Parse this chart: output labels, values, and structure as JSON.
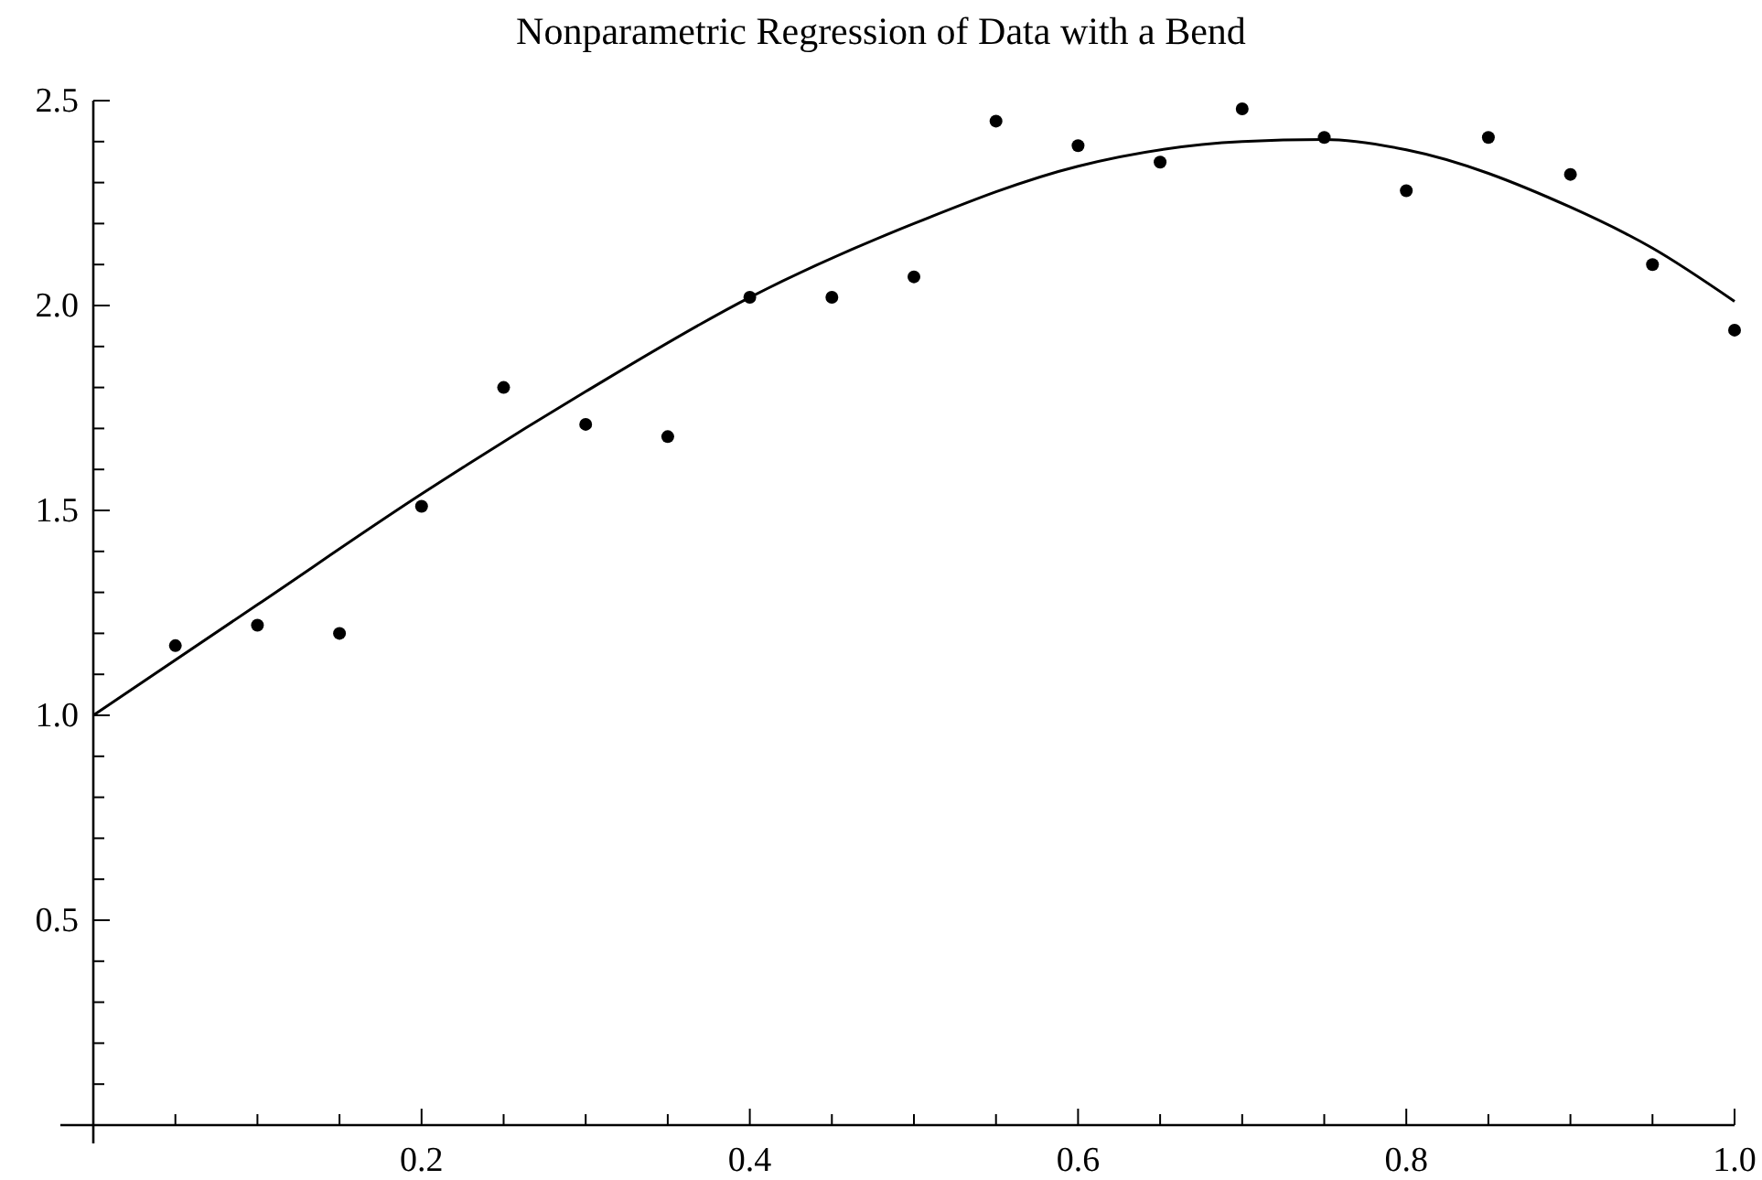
{
  "chart_data": {
    "type": "scatter",
    "title": "Nonparametric Regression of Data with a Bend",
    "xlim": [
      0,
      1.0
    ],
    "ylim": [
      0,
      2.5
    ],
    "xticks": [
      {
        "value": 0.05,
        "label": null
      },
      {
        "value": 0.1,
        "label": null
      },
      {
        "value": 0.15,
        "label": null
      },
      0.2,
      {
        "value": 0.25,
        "label": null
      },
      {
        "value": 0.3,
        "label": null
      },
      {
        "value": 0.35,
        "label": null
      },
      0.4,
      {
        "value": 0.45,
        "label": null
      },
      {
        "value": 0.5,
        "label": null
      },
      {
        "value": 0.55,
        "label": null
      },
      0.6,
      {
        "value": 0.65,
        "label": null
      },
      {
        "value": 0.7,
        "label": null
      },
      {
        "value": 0.75,
        "label": null
      },
      0.8,
      {
        "value": 0.85,
        "label": null
      },
      {
        "value": 0.9,
        "label": null
      },
      {
        "value": 0.95,
        "label": null
      },
      {
        "value": 1.0,
        "label": "1.0"
      }
    ],
    "yticks": [
      {
        "value": 0.1,
        "label": null
      },
      {
        "value": 0.2,
        "label": null
      },
      {
        "value": 0.3,
        "label": null
      },
      {
        "value": 0.4,
        "label": null
      },
      0.5,
      {
        "value": 0.6,
        "label": null
      },
      {
        "value": 0.7,
        "label": null
      },
      {
        "value": 0.8,
        "label": null
      },
      {
        "value": 0.9,
        "label": null
      },
      {
        "value": 1.0,
        "label": "1.0"
      },
      {
        "value": 1.1,
        "label": null
      },
      {
        "value": 1.2,
        "label": null
      },
      {
        "value": 1.3,
        "label": null
      },
      {
        "value": 1.4,
        "label": null
      },
      1.5,
      {
        "value": 1.6,
        "label": null
      },
      {
        "value": 1.7,
        "label": null
      },
      {
        "value": 1.8,
        "label": null
      },
      {
        "value": 1.9,
        "label": null
      },
      {
        "value": 2.0,
        "label": "2.0"
      },
      {
        "value": 2.1,
        "label": null
      },
      {
        "value": 2.2,
        "label": null
      },
      {
        "value": 2.3,
        "label": null
      },
      {
        "value": 2.4,
        "label": null
      },
      2.5
    ],
    "grid": false,
    "series": [
      {
        "color": "#000000",
        "marker": "circle",
        "x": [
          0.05,
          0.1,
          0.15,
          0.2,
          0.25,
          0.3,
          0.35,
          0.4,
          0.45,
          0.5,
          0.55,
          0.6,
          0.65,
          0.7,
          0.75,
          0.8,
          0.85,
          0.9,
          0.95,
          1.0
        ],
        "values": [
          1.17,
          1.22,
          1.2,
          1.51,
          1.8,
          1.71,
          1.68,
          2.02,
          2.02,
          2.07,
          2.45,
          2.39,
          2.35,
          2.48,
          2.41,
          2.28,
          2.41,
          2.32,
          2.1,
          1.94
        ]
      },
      {
        "type": "line",
        "color": "#000000",
        "marker": "none",
        "line_style": "solid",
        "x": [
          0,
          0.1,
          0.2,
          0.3,
          0.4,
          0.5,
          0.6,
          0.7,
          0.75,
          0.8,
          0.9,
          0.95,
          1.0
        ],
        "values": [
          1.0,
          1.27,
          1.54,
          1.79,
          2.02,
          2.2,
          2.34,
          2.4,
          2.405,
          2.38,
          2.24,
          2.14,
          2.01
        ]
      }
    ]
  }
}
